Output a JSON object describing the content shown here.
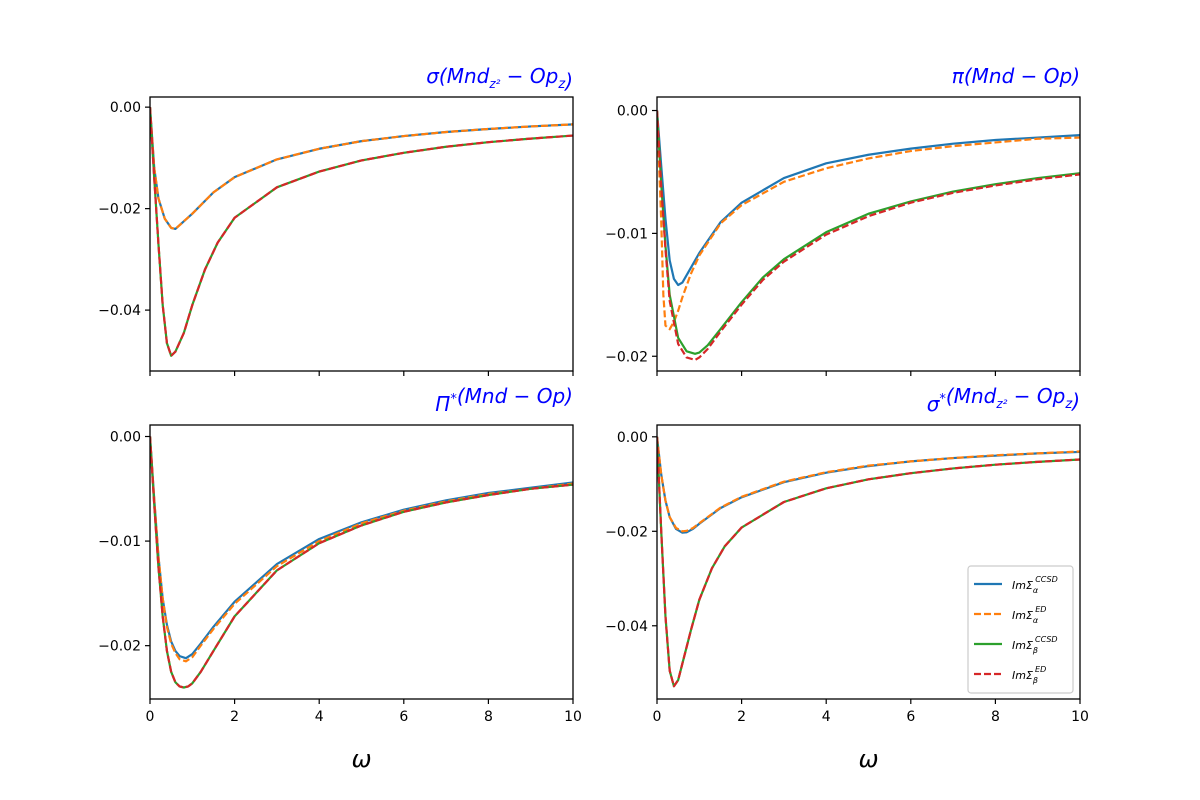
{
  "chart_data": [
    {
      "type": "line",
      "title": "σ(Mnd_{z²} − Op_z)",
      "xlabel": "",
      "xlim": [
        0,
        10
      ],
      "ylim": [
        -0.052,
        0.002
      ],
      "xticks": [],
      "yticks": [
        0.0,
        -0.02,
        -0.04
      ],
      "ytick_labels": [
        "0.00",
        "−0.02",
        "−0.04"
      ],
      "grid": false,
      "series": [
        {
          "name": "ImΣ_α^CCSD",
          "color": "#1f77b4",
          "dash": false,
          "x": [
            0,
            0.1,
            0.2,
            0.35,
            0.5,
            0.6,
            0.8,
            1,
            1.5,
            2,
            3,
            4,
            5,
            6,
            7,
            8,
            9,
            10
          ],
          "y": [
            0,
            -0.012,
            -0.018,
            -0.022,
            -0.0238,
            -0.024,
            -0.0225,
            -0.021,
            -0.0168,
            -0.0138,
            -0.0103,
            -0.0082,
            -0.0067,
            -0.0057,
            -0.0049,
            -0.0043,
            -0.0038,
            -0.0034
          ]
        },
        {
          "name": "ImΣ_α^ED",
          "color": "#ff7f0e",
          "dash": true,
          "x": [
            0,
            0.1,
            0.2,
            0.35,
            0.5,
            0.6,
            0.8,
            1,
            1.5,
            2,
            3,
            4,
            5,
            6,
            7,
            8,
            9,
            10
          ],
          "y": [
            0,
            -0.012,
            -0.018,
            -0.022,
            -0.0238,
            -0.024,
            -0.0225,
            -0.021,
            -0.0168,
            -0.0138,
            -0.0103,
            -0.0082,
            -0.0067,
            -0.0057,
            -0.0049,
            -0.0043,
            -0.0038,
            -0.0034
          ]
        },
        {
          "name": "ImΣ_β^CCSD",
          "color": "#2ca02c",
          "dash": false,
          "x": [
            0,
            0.1,
            0.2,
            0.3,
            0.4,
            0.5,
            0.6,
            0.8,
            1,
            1.3,
            1.6,
            2,
            3,
            4,
            5,
            6,
            7,
            8,
            9,
            10
          ],
          "y": [
            0,
            -0.014,
            -0.027,
            -0.039,
            -0.0465,
            -0.049,
            -0.0482,
            -0.0445,
            -0.039,
            -0.032,
            -0.0267,
            -0.0218,
            -0.0158,
            -0.0127,
            -0.0105,
            -0.009,
            -0.0078,
            -0.0069,
            -0.0062,
            -0.0056
          ]
        },
        {
          "name": "ImΣ_β^ED",
          "color": "#d62728",
          "dash": true,
          "x": [
            0,
            0.1,
            0.2,
            0.3,
            0.4,
            0.5,
            0.6,
            0.8,
            1,
            1.3,
            1.6,
            2,
            3,
            4,
            5,
            6,
            7,
            8,
            9,
            10
          ],
          "y": [
            0,
            -0.014,
            -0.027,
            -0.039,
            -0.0465,
            -0.049,
            -0.0482,
            -0.0445,
            -0.039,
            -0.032,
            -0.0267,
            -0.0218,
            -0.0158,
            -0.0127,
            -0.0105,
            -0.009,
            -0.0078,
            -0.0069,
            -0.0062,
            -0.0056
          ]
        }
      ]
    },
    {
      "type": "line",
      "title": "π(Mnd − Op)",
      "xlabel": "",
      "xlim": [
        0,
        10
      ],
      "ylim": [
        -0.0212,
        0.0011
      ],
      "xticks": [],
      "yticks": [
        0.0,
        -0.01,
        -0.02
      ],
      "ytick_labels": [
        "0.00",
        "−0.01",
        "−0.02"
      ],
      "grid": false,
      "series": [
        {
          "name": "ImΣ_α^CCSD",
          "color": "#1f77b4",
          "dash": false,
          "x": [
            0,
            0.1,
            0.2,
            0.3,
            0.4,
            0.5,
            0.6,
            0.8,
            1,
            1.5,
            2,
            3,
            4,
            5,
            6,
            7,
            8,
            9,
            10
          ],
          "y": [
            0,
            -0.0045,
            -0.0088,
            -0.0122,
            -0.0137,
            -0.0142,
            -0.014,
            -0.0128,
            -0.0116,
            -0.0091,
            -0.0075,
            -0.0055,
            -0.0043,
            -0.0036,
            -0.0031,
            -0.0027,
            -0.0024,
            -0.0022,
            -0.002
          ]
        },
        {
          "name": "ImΣ_α^ED",
          "color": "#ff7f0e",
          "dash": true,
          "x": [
            0,
            0.1,
            0.15,
            0.2,
            0.3,
            0.4,
            0.5,
            0.6,
            0.8,
            1,
            1.5,
            2,
            3,
            4,
            5,
            6,
            7,
            8,
            9,
            10
          ],
          "y": [
            0,
            -0.009,
            -0.015,
            -0.0175,
            -0.0178,
            -0.0172,
            -0.0163,
            -0.0152,
            -0.0133,
            -0.0118,
            -0.0092,
            -0.0077,
            -0.0058,
            -0.0047,
            -0.0039,
            -0.0033,
            -0.0029,
            -0.0026,
            -0.0023,
            -0.0022
          ]
        },
        {
          "name": "ImΣ_β^CCSD",
          "color": "#2ca02c",
          "dash": false,
          "x": [
            0,
            0.1,
            0.2,
            0.3,
            0.5,
            0.7,
            0.9,
            1,
            1.2,
            1.5,
            2,
            2.5,
            3,
            4,
            5,
            6,
            7,
            8,
            9,
            10
          ],
          "y": [
            0,
            -0.006,
            -0.011,
            -0.015,
            -0.0185,
            -0.0196,
            -0.0198,
            -0.0197,
            -0.0191,
            -0.0178,
            -0.0156,
            -0.0136,
            -0.0121,
            -0.0099,
            -0.0084,
            -0.0074,
            -0.0066,
            -0.006,
            -0.0055,
            -0.0051
          ]
        },
        {
          "name": "ImΣ_β^ED",
          "color": "#d62728",
          "dash": true,
          "x": [
            0,
            0.1,
            0.2,
            0.3,
            0.5,
            0.7,
            0.9,
            1,
            1.2,
            1.5,
            2,
            2.5,
            3,
            4,
            5,
            6,
            7,
            8,
            9,
            10
          ],
          "y": [
            0,
            -0.0062,
            -0.0113,
            -0.0155,
            -0.019,
            -0.0201,
            -0.0203,
            -0.0201,
            -0.0194,
            -0.018,
            -0.0158,
            -0.0138,
            -0.0123,
            -0.0101,
            -0.0086,
            -0.0075,
            -0.0067,
            -0.0061,
            -0.0056,
            -0.0052
          ]
        }
      ]
    },
    {
      "type": "line",
      "title": "Π*(Mnd − Op)",
      "xlabel": "ω",
      "xlim": [
        0,
        10
      ],
      "ylim": [
        -0.0251,
        0.0011
      ],
      "xticks": [
        0,
        2,
        4,
        6,
        8,
        10
      ],
      "xtick_labels": [
        "0",
        "2",
        "4",
        "6",
        "8",
        "10"
      ],
      "yticks": [
        0.0,
        -0.01,
        -0.02
      ],
      "ytick_labels": [
        "0.00",
        "−0.01",
        "−0.02"
      ],
      "grid": false,
      "series": [
        {
          "name": "ImΣ_α^CCSD",
          "color": "#1f77b4",
          "dash": false,
          "x": [
            0,
            0.1,
            0.2,
            0.3,
            0.4,
            0.5,
            0.6,
            0.7,
            0.85,
            1,
            1.2,
            1.5,
            2,
            3,
            4,
            5,
            6,
            7,
            8,
            9,
            10
          ],
          "y": [
            0,
            -0.006,
            -0.0115,
            -0.0155,
            -0.018,
            -0.0196,
            -0.0205,
            -0.021,
            -0.0212,
            -0.0208,
            -0.0198,
            -0.0182,
            -0.0158,
            -0.0122,
            -0.0098,
            -0.0082,
            -0.007,
            -0.0061,
            -0.0054,
            -0.0049,
            -0.0044
          ]
        },
        {
          "name": "ImΣ_α^ED",
          "color": "#ff7f0e",
          "dash": true,
          "x": [
            0,
            0.1,
            0.2,
            0.3,
            0.4,
            0.5,
            0.6,
            0.7,
            0.85,
            1,
            1.2,
            1.5,
            2,
            3,
            4,
            5,
            6,
            7,
            8,
            9,
            10
          ],
          "y": [
            0,
            -0.006,
            -0.0115,
            -0.0155,
            -0.0182,
            -0.0198,
            -0.0207,
            -0.0213,
            -0.0215,
            -0.0211,
            -0.02,
            -0.0184,
            -0.016,
            -0.0124,
            -0.01,
            -0.0083,
            -0.0071,
            -0.0062,
            -0.0055,
            -0.005,
            -0.0045
          ]
        },
        {
          "name": "ImΣ_β^CCSD",
          "color": "#2ca02c",
          "dash": false,
          "x": [
            0,
            0.1,
            0.2,
            0.3,
            0.4,
            0.5,
            0.6,
            0.7,
            0.8,
            0.9,
            1,
            1.2,
            1.5,
            2,
            3,
            4,
            5,
            6,
            7,
            8,
            9,
            10
          ],
          "y": [
            0,
            -0.0065,
            -0.0125,
            -0.0172,
            -0.0205,
            -0.0225,
            -0.0235,
            -0.0239,
            -0.024,
            -0.0239,
            -0.0236,
            -0.0225,
            -0.0205,
            -0.0172,
            -0.0128,
            -0.0102,
            -0.0085,
            -0.0072,
            -0.0063,
            -0.0056,
            -0.005,
            -0.0046
          ]
        },
        {
          "name": "ImΣ_β^ED",
          "color": "#d62728",
          "dash": true,
          "x": [
            0,
            0.1,
            0.2,
            0.3,
            0.4,
            0.5,
            0.6,
            0.7,
            0.8,
            0.9,
            1,
            1.2,
            1.5,
            2,
            3,
            4,
            5,
            6,
            7,
            8,
            9,
            10
          ],
          "y": [
            0,
            -0.0065,
            -0.0125,
            -0.0172,
            -0.0205,
            -0.0225,
            -0.0235,
            -0.0239,
            -0.024,
            -0.0239,
            -0.0236,
            -0.0225,
            -0.0205,
            -0.0172,
            -0.0128,
            -0.0102,
            -0.0085,
            -0.0072,
            -0.0063,
            -0.0056,
            -0.005,
            -0.0046
          ]
        }
      ]
    },
    {
      "type": "line",
      "title": "σ*(Mnd_{z²} − Op_z)",
      "xlabel": "ω",
      "xlim": [
        0,
        10
      ],
      "ylim": [
        -0.0555,
        0.0025
      ],
      "xticks": [
        0,
        2,
        4,
        6,
        8,
        10
      ],
      "xtick_labels": [
        "0",
        "2",
        "4",
        "6",
        "8",
        "10"
      ],
      "yticks": [
        0.0,
        -0.02,
        -0.04
      ],
      "ytick_labels": [
        "0.00",
        "−0.02",
        "−0.04"
      ],
      "grid": false,
      "legend": "lower-right",
      "series": [
        {
          "name": "ImΣ_α^CCSD",
          "color": "#1f77b4",
          "dash": false,
          "x": [
            0,
            0.1,
            0.2,
            0.3,
            0.45,
            0.6,
            0.7,
            0.85,
            1,
            1.5,
            2,
            3,
            4,
            5,
            6,
            7,
            8,
            9,
            10
          ],
          "y": [
            0,
            -0.008,
            -0.0135,
            -0.017,
            -0.0195,
            -0.0203,
            -0.0202,
            -0.0195,
            -0.0184,
            -0.0151,
            -0.0128,
            -0.0096,
            -0.0076,
            -0.0062,
            -0.0052,
            -0.0045,
            -0.004,
            -0.0035,
            -0.0032
          ]
        },
        {
          "name": "ImΣ_α^ED",
          "color": "#ff7f0e",
          "dash": true,
          "x": [
            0,
            0.1,
            0.2,
            0.3,
            0.45,
            0.6,
            0.7,
            0.85,
            1,
            1.5,
            2,
            3,
            4,
            5,
            6,
            7,
            8,
            9,
            10
          ],
          "y": [
            0,
            -0.008,
            -0.0135,
            -0.017,
            -0.0193,
            -0.02,
            -0.0199,
            -0.0193,
            -0.0183,
            -0.015,
            -0.0127,
            -0.0095,
            -0.0075,
            -0.0061,
            -0.0052,
            -0.0045,
            -0.0039,
            -0.0035,
            -0.0031
          ]
        },
        {
          "name": "ImΣ_β^CCSD",
          "color": "#2ca02c",
          "dash": false,
          "x": [
            0,
            0.1,
            0.2,
            0.3,
            0.4,
            0.5,
            0.6,
            0.8,
            1,
            1.3,
            1.6,
            2,
            3,
            4,
            5,
            6,
            7,
            8,
            9,
            10
          ],
          "y": [
            0,
            -0.02,
            -0.038,
            -0.0495,
            -0.0528,
            -0.0515,
            -0.048,
            -0.041,
            -0.0345,
            -0.0278,
            -0.0232,
            -0.0192,
            -0.0138,
            -0.0109,
            -0.009,
            -0.0077,
            -0.0067,
            -0.0059,
            -0.0053,
            -0.0048
          ]
        },
        {
          "name": "ImΣ_β^ED",
          "color": "#d62728",
          "dash": true,
          "x": [
            0,
            0.1,
            0.2,
            0.3,
            0.4,
            0.5,
            0.6,
            0.8,
            1,
            1.3,
            1.6,
            2,
            3,
            4,
            5,
            6,
            7,
            8,
            9,
            10
          ],
          "y": [
            0,
            -0.02,
            -0.038,
            -0.0495,
            -0.0528,
            -0.0515,
            -0.048,
            -0.041,
            -0.0345,
            -0.0278,
            -0.0232,
            -0.0192,
            -0.0138,
            -0.0109,
            -0.009,
            -0.0077,
            -0.0067,
            -0.0059,
            -0.0053,
            -0.0048
          ]
        }
      ]
    }
  ],
  "legend": {
    "entries": [
      {
        "base": "ImΣ",
        "sub": "α",
        "sup": "CCSD",
        "color": "#1f77b4",
        "dash": false
      },
      {
        "base": "ImΣ",
        "sub": "α",
        "sup": "ED",
        "color": "#ff7f0e",
        "dash": true
      },
      {
        "base": "ImΣ",
        "sub": "β",
        "sup": "CCSD",
        "color": "#2ca02c",
        "dash": false
      },
      {
        "base": "ImΣ",
        "sub": "β",
        "sup": "ED",
        "color": "#d62728",
        "dash": true
      }
    ]
  },
  "titles_rich": [
    {
      "prefix": "σ(",
      "main": "Mnd",
      "sub": "z²",
      "mid": " − Op",
      "sub2": "z",
      "suffix": ")"
    },
    {
      "prefix": "π(",
      "main": "Mnd − Op",
      "sub": "",
      "mid": "",
      "sub2": "",
      "suffix": ")"
    },
    {
      "prefix": "Π",
      "sup": "*",
      "main": "(Mnd − Op)",
      "sub": "",
      "mid": "",
      "sub2": "",
      "suffix": ""
    },
    {
      "prefix": "σ",
      "sup": "*",
      "main": "(Mnd",
      "sub": "z²",
      "mid": " − Op",
      "sub2": "z",
      "suffix": ")"
    }
  ]
}
